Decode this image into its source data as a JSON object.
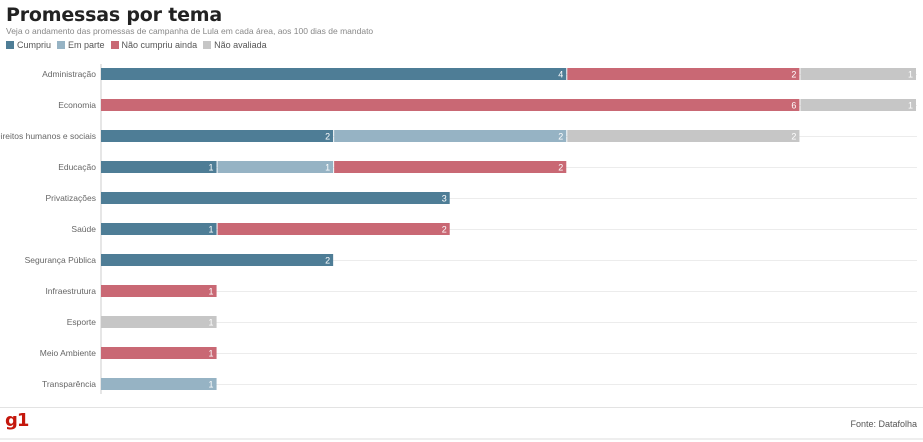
{
  "header": {
    "title": "Promessas por tema",
    "subtitle": "Veja o andamento das promessas de campanha de Lula em cada área, aos 100 dias de mandato"
  },
  "legend": [
    {
      "label": "Cumpriu",
      "color": "#4e7d96"
    },
    {
      "label": "Em parte",
      "color": "#96b3c4"
    },
    {
      "label": "Não cumpriu ainda",
      "color": "#c96874"
    },
    {
      "label": "Não avaliada",
      "color": "#c6c6c6"
    }
  ],
  "footer": {
    "logo": "g1",
    "source": "Fonte: Datafolha"
  },
  "chart_data": {
    "type": "bar",
    "orientation": "horizontal",
    "stacked": true,
    "categories": [
      "Administração",
      "Economia",
      "Direitos humanos e sociais",
      "Educação",
      "Privatizações",
      "Saúde",
      "Segurança Pública",
      "Infraestrutura",
      "Esporte",
      "Meio Ambiente",
      "Transparência"
    ],
    "series": [
      {
        "name": "Cumpriu",
        "color": "#4e7d96",
        "values": [
          4,
          0,
          2,
          1,
          3,
          1,
          2,
          0,
          0,
          0,
          0
        ]
      },
      {
        "name": "Em parte",
        "color": "#96b3c4",
        "values": [
          0,
          0,
          2,
          1,
          0,
          0,
          0,
          0,
          0,
          0,
          1
        ]
      },
      {
        "name": "Não cumpriu ainda",
        "color": "#c96874",
        "values": [
          2,
          6,
          0,
          2,
          0,
          2,
          0,
          1,
          0,
          1,
          0
        ]
      },
      {
        "name": "Não avaliada",
        "color": "#c6c6c6",
        "values": [
          1,
          1,
          2,
          0,
          0,
          0,
          0,
          0,
          1,
          0,
          0
        ]
      }
    ],
    "xlim": [
      0,
      7
    ],
    "grid": true,
    "legend_position": "top-left"
  }
}
